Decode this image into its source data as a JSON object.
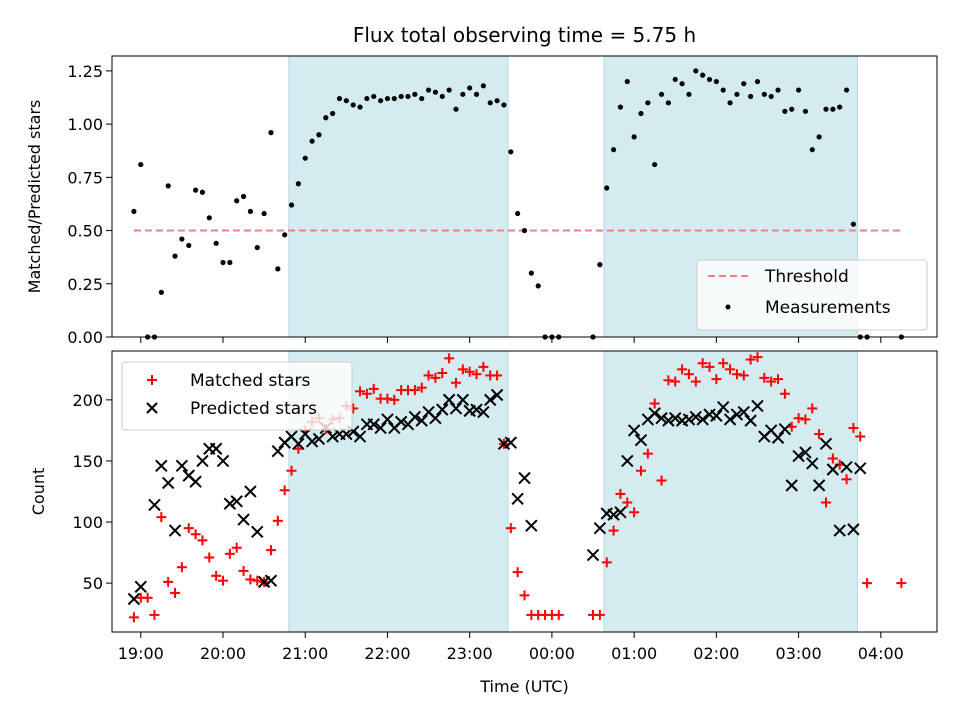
{
  "chart_data": [
    {
      "type": "scatter",
      "title": "Flux total observing time = 5.75 h",
      "xlabel": "",
      "ylabel": "Matched/Predicted stars",
      "xlim": [
        "18:39",
        "04:41"
      ],
      "ylim": [
        0,
        1.32
      ],
      "yticks": [
        0,
        0.25,
        0.5,
        0.75,
        1.0,
        1.25
      ],
      "ytick_labels": [
        "0.00",
        "0.25",
        "0.50",
        "0.75",
        "1.00",
        "1.25"
      ],
      "shaded_intervals": [
        [
          "20:48",
          "23:28"
        ],
        [
          "00:38",
          "03:43"
        ]
      ],
      "shade_color": "#d4ebf0",
      "legend": {
        "location": "lower right",
        "entries": [
          {
            "label": "Threshold",
            "style": "dashed-line",
            "color": "#f08080"
          },
          {
            "label": "Measurements",
            "style": "dot",
            "color": "#000000"
          }
        ]
      },
      "threshold": {
        "name": "Threshold",
        "y": 0.5,
        "x_start": "18:55",
        "x_end": "04:15",
        "color": "#f08080"
      },
      "series": [
        {
          "name": "Measurements",
          "color": "#000000",
          "marker": "dot",
          "x": [
            "18:55",
            "19:00",
            "19:05",
            "19:10",
            "19:15",
            "19:20",
            "19:25",
            "19:30",
            "19:35",
            "19:40",
            "19:45",
            "19:50",
            "19:55",
            "20:00",
            "20:05",
            "20:10",
            "20:15",
            "20:20",
            "20:25",
            "20:30",
            "20:35",
            "20:40",
            "20:45",
            "20:50",
            "20:55",
            "21:00",
            "21:05",
            "21:10",
            "21:15",
            "21:20",
            "21:25",
            "21:30",
            "21:35",
            "21:40",
            "21:45",
            "21:50",
            "21:55",
            "22:00",
            "22:05",
            "22:10",
            "22:15",
            "22:20",
            "22:25",
            "22:30",
            "22:35",
            "22:40",
            "22:45",
            "22:50",
            "22:55",
            "23:00",
            "23:05",
            "23:10",
            "23:15",
            "23:20",
            "23:25",
            "23:30",
            "23:35",
            "23:40",
            "23:45",
            "23:50",
            "23:55",
            "00:00",
            "00:05",
            "00:30",
            "00:35",
            "00:40",
            "00:45",
            "00:50",
            "00:55",
            "01:00",
            "01:05",
            "01:10",
            "01:15",
            "01:20",
            "01:25",
            "01:30",
            "01:35",
            "01:40",
            "01:45",
            "01:50",
            "01:55",
            "02:00",
            "02:05",
            "02:10",
            "02:15",
            "02:20",
            "02:25",
            "02:30",
            "02:35",
            "02:40",
            "02:45",
            "02:50",
            "02:55",
            "03:00",
            "03:05",
            "03:10",
            "03:15",
            "03:20",
            "03:25",
            "03:30",
            "03:35",
            "03:40",
            "03:45",
            "03:50",
            "04:15"
          ],
          "y": [
            0.59,
            0.81,
            0.0,
            0.0,
            0.21,
            0.71,
            0.38,
            0.46,
            0.43,
            0.69,
            0.68,
            0.56,
            0.44,
            0.35,
            0.35,
            0.64,
            0.66,
            0.59,
            0.42,
            0.58,
            0.96,
            0.32,
            0.48,
            0.62,
            0.72,
            0.84,
            0.92,
            0.95,
            1.03,
            1.05,
            1.12,
            1.11,
            1.09,
            1.08,
            1.12,
            1.13,
            1.11,
            1.12,
            1.12,
            1.13,
            1.13,
            1.14,
            1.12,
            1.16,
            1.15,
            1.13,
            1.16,
            1.07,
            1.14,
            1.17,
            1.14,
            1.18,
            1.1,
            1.11,
            1.09,
            0.87,
            0.58,
            0.5,
            0.3,
            0.24,
            0.0,
            0.0,
            0.0,
            0.0,
            0.34,
            0.7,
            0.88,
            1.08,
            1.2,
            0.94,
            1.05,
            1.1,
            0.81,
            1.14,
            1.1,
            1.21,
            1.19,
            1.14,
            1.25,
            1.23,
            1.21,
            1.2,
            1.16,
            1.1,
            1.14,
            1.19,
            1.13,
            1.2,
            1.14,
            1.13,
            1.16,
            1.06,
            1.07,
            1.16,
            1.06,
            0.88,
            0.94,
            1.07,
            1.07,
            1.08,
            1.16,
            0.53,
            0.0,
            0.0,
            0.0
          ]
        }
      ]
    },
    {
      "type": "scatter",
      "title": "",
      "xlabel": "Time (UTC)",
      "ylabel": "Count",
      "xlim": [
        "18:39",
        "04:41"
      ],
      "ylim": [
        10,
        240
      ],
      "xticks": [
        "19:00",
        "20:00",
        "21:00",
        "22:00",
        "23:00",
        "00:00",
        "01:00",
        "02:00",
        "03:00",
        "04:00"
      ],
      "yticks": [
        50,
        100,
        150,
        200
      ],
      "shaded_intervals": [
        [
          "20:48",
          "23:28"
        ],
        [
          "00:38",
          "03:43"
        ]
      ],
      "shade_color": "#d4ebf0",
      "legend": {
        "location": "upper left",
        "entries": [
          {
            "label": "Matched stars",
            "style": "plus",
            "color": "#ff0000"
          },
          {
            "label": "Predicted stars",
            "style": "x",
            "color": "#000000"
          }
        ]
      },
      "series": [
        {
          "name": "Matched stars",
          "color": "#ff0000",
          "marker": "plus",
          "x": [
            "18:55",
            "19:00",
            "19:05",
            "19:10",
            "19:15",
            "19:20",
            "19:25",
            "19:30",
            "19:35",
            "19:40",
            "19:45",
            "19:50",
            "19:55",
            "20:00",
            "20:05",
            "20:10",
            "20:15",
            "20:20",
            "20:25",
            "20:30",
            "20:35",
            "20:40",
            "20:45",
            "20:50",
            "20:55",
            "21:00",
            "21:05",
            "21:10",
            "21:15",
            "21:20",
            "21:25",
            "21:30",
            "21:35",
            "21:40",
            "21:45",
            "21:50",
            "21:55",
            "22:00",
            "22:05",
            "22:10",
            "22:15",
            "22:20",
            "22:25",
            "22:30",
            "22:35",
            "22:40",
            "22:45",
            "22:50",
            "22:55",
            "23:00",
            "23:05",
            "23:10",
            "23:15",
            "23:20",
            "23:25",
            "23:30",
            "23:35",
            "23:40",
            "23:45",
            "23:50",
            "23:55",
            "00:00",
            "00:05",
            "00:30",
            "00:35",
            "00:40",
            "00:45",
            "00:50",
            "00:55",
            "01:00",
            "01:05",
            "01:10",
            "01:15",
            "01:20",
            "01:25",
            "01:30",
            "01:35",
            "01:40",
            "01:45",
            "01:50",
            "01:55",
            "02:00",
            "02:05",
            "02:10",
            "02:15",
            "02:20",
            "02:25",
            "02:30",
            "02:35",
            "02:40",
            "02:45",
            "02:50",
            "02:55",
            "03:00",
            "03:05",
            "03:10",
            "03:15",
            "03:20",
            "03:25",
            "03:30",
            "03:35",
            "03:40",
            "03:45",
            "03:50",
            "04:15"
          ],
          "y": [
            22,
            38,
            38,
            24,
            104,
            51,
            42,
            63,
            95,
            90,
            85,
            71,
            56,
            52,
            74,
            79,
            60,
            53,
            52,
            51,
            77,
            101,
            126,
            142,
            160,
            175,
            182,
            185,
            176,
            184,
            185,
            195,
            193,
            207,
            205,
            209,
            201,
            201,
            200,
            208,
            208,
            208,
            210,
            220,
            218,
            222,
            234,
            214,
            225,
            223,
            221,
            227,
            220,
            220,
            164,
            95,
            59,
            40,
            24,
            24,
            24,
            24,
            24,
            24,
            24,
            67,
            93,
            123,
            116,
            108,
            142,
            156,
            197,
            134,
            216,
            215,
            225,
            221,
            215,
            230,
            227,
            217,
            230,
            225,
            221,
            220,
            233,
            235,
            218,
            215,
            217,
            205,
            178,
            185,
            184,
            193,
            172,
            116,
            152,
            147,
            135,
            177,
            170,
            50,
            50
          ]
        },
        {
          "name": "Predicted stars",
          "color": "#000000",
          "marker": "x",
          "x": [
            "18:55",
            "19:00",
            "19:10",
            "19:15",
            "19:20",
            "19:25",
            "19:30",
            "19:35",
            "19:40",
            "19:45",
            "19:50",
            "19:55",
            "20:00",
            "20:05",
            "20:10",
            "20:15",
            "20:20",
            "20:25",
            "20:30",
            "20:35",
            "20:40",
            "20:45",
            "20:50",
            "20:55",
            "21:00",
            "21:05",
            "21:10",
            "21:15",
            "21:20",
            "21:25",
            "21:30",
            "21:35",
            "21:40",
            "21:45",
            "21:50",
            "21:55",
            "22:00",
            "22:05",
            "22:10",
            "22:15",
            "22:20",
            "22:25",
            "22:30",
            "22:35",
            "22:40",
            "22:45",
            "22:50",
            "22:55",
            "23:00",
            "23:05",
            "23:10",
            "23:15",
            "23:20",
            "23:25",
            "23:30",
            "23:35",
            "23:40",
            "23:45",
            "00:30",
            "00:35",
            "00:40",
            "00:45",
            "00:50",
            "00:55",
            "01:00",
            "01:05",
            "01:10",
            "01:15",
            "01:20",
            "01:25",
            "01:30",
            "01:35",
            "01:40",
            "01:45",
            "01:50",
            "01:55",
            "02:00",
            "02:05",
            "02:10",
            "02:15",
            "02:20",
            "02:25",
            "02:30",
            "02:35",
            "02:40",
            "02:45",
            "02:50",
            "02:55",
            "03:00",
            "03:05",
            "03:10",
            "03:15",
            "03:20",
            "03:25",
            "03:30",
            "03:35",
            "03:40",
            "03:45"
          ],
          "y": [
            37,
            47,
            114,
            146,
            132,
            93,
            146,
            138,
            133,
            150,
            160,
            160,
            150,
            115,
            117,
            102,
            125,
            92,
            51,
            52,
            158,
            165,
            170,
            164,
            172,
            166,
            168,
            177,
            170,
            172,
            172,
            174,
            170,
            180,
            180,
            177,
            184,
            177,
            182,
            180,
            186,
            183,
            190,
            185,
            192,
            200,
            193,
            200,
            191,
            192,
            190,
            200,
            204,
            164,
            165,
            119,
            136,
            97,
            73,
            95,
            107,
            106,
            108,
            150,
            175,
            167,
            184,
            189,
            185,
            183,
            185,
            183,
            184,
            186,
            184,
            188,
            187,
            194,
            184,
            188,
            190,
            183,
            195,
            170,
            175,
            169,
            176,
            130,
            154,
            157,
            148,
            130,
            164,
            143,
            93,
            145,
            94,
            144
          ]
        }
      ]
    }
  ]
}
